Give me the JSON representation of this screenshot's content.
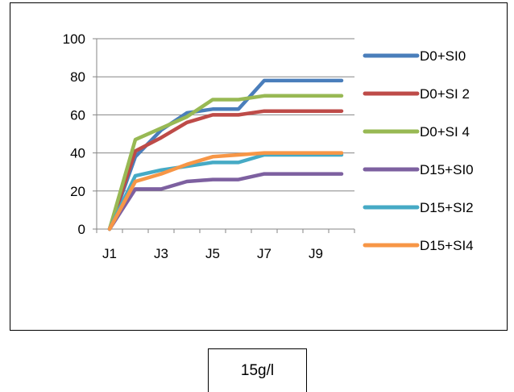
{
  "chart_data": {
    "type": "line",
    "title": "",
    "xlabel": "",
    "ylabel": "",
    "x": [
      "J1",
      "J2",
      "J3",
      "J4",
      "J5",
      "J6",
      "J7",
      "J8",
      "J9",
      "J10"
    ],
    "x_tick_labels": [
      "J1",
      "J3",
      "J5",
      "J7",
      "J9"
    ],
    "ylim": [
      0,
      100
    ],
    "y_ticks": [
      0,
      20,
      40,
      60,
      80,
      100
    ],
    "grid": "horizontal",
    "legend_position": "right",
    "series": [
      {
        "name": "D0+SI0",
        "color": "#4A7EBB",
        "values": [
          0,
          38,
          52,
          61,
          63,
          63,
          78,
          78,
          78,
          78
        ]
      },
      {
        "name": "D0+SI 2",
        "color": "#BE4B48",
        "values": [
          0,
          41,
          48,
          56,
          60,
          60,
          62,
          62,
          62,
          62
        ]
      },
      {
        "name": "D0+SI 4",
        "color": "#98B954",
        "values": [
          0,
          47,
          53,
          59,
          68,
          68,
          70,
          70,
          70,
          70
        ]
      },
      {
        "name": "D15+SI0",
        "color": "#7D60A0",
        "values": [
          0,
          21,
          21,
          25,
          26,
          26,
          29,
          29,
          29,
          29
        ]
      },
      {
        "name": "D15+SI2",
        "color": "#46AAC5",
        "values": [
          0,
          28,
          31,
          33,
          35,
          35,
          39,
          39,
          39,
          39
        ]
      },
      {
        "name": "D15+SI4",
        "color": "#F79646",
        "values": [
          0,
          25,
          29,
          34,
          38,
          39,
          40,
          40,
          40,
          40
        ]
      }
    ]
  },
  "caption": "15g/l"
}
